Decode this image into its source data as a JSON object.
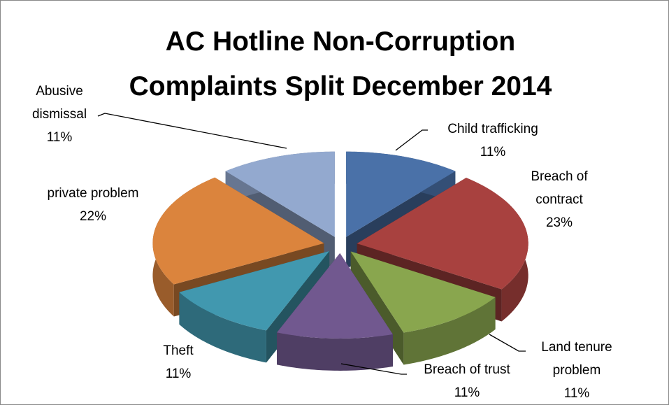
{
  "chart_data": {
    "type": "pie3d",
    "title": "AC Hotline Non-Corruption Complaints Split December 2014",
    "categories": [
      "Child trafficking",
      "Breach of contract",
      "Land tenure problem",
      "Breach of trust",
      "Theft",
      "private problem",
      "Abusive dismissal"
    ],
    "values": [
      11,
      23,
      11,
      11,
      11,
      22,
      11
    ],
    "value_labels": [
      "11%",
      "23%",
      "11%",
      "11%",
      "11%",
      "22%",
      "11%"
    ],
    "colors": [
      "#4a71a8",
      "#a8413f",
      "#89a64e",
      "#71588f",
      "#4198af",
      "#db843d",
      "#93a9cf"
    ]
  }
}
